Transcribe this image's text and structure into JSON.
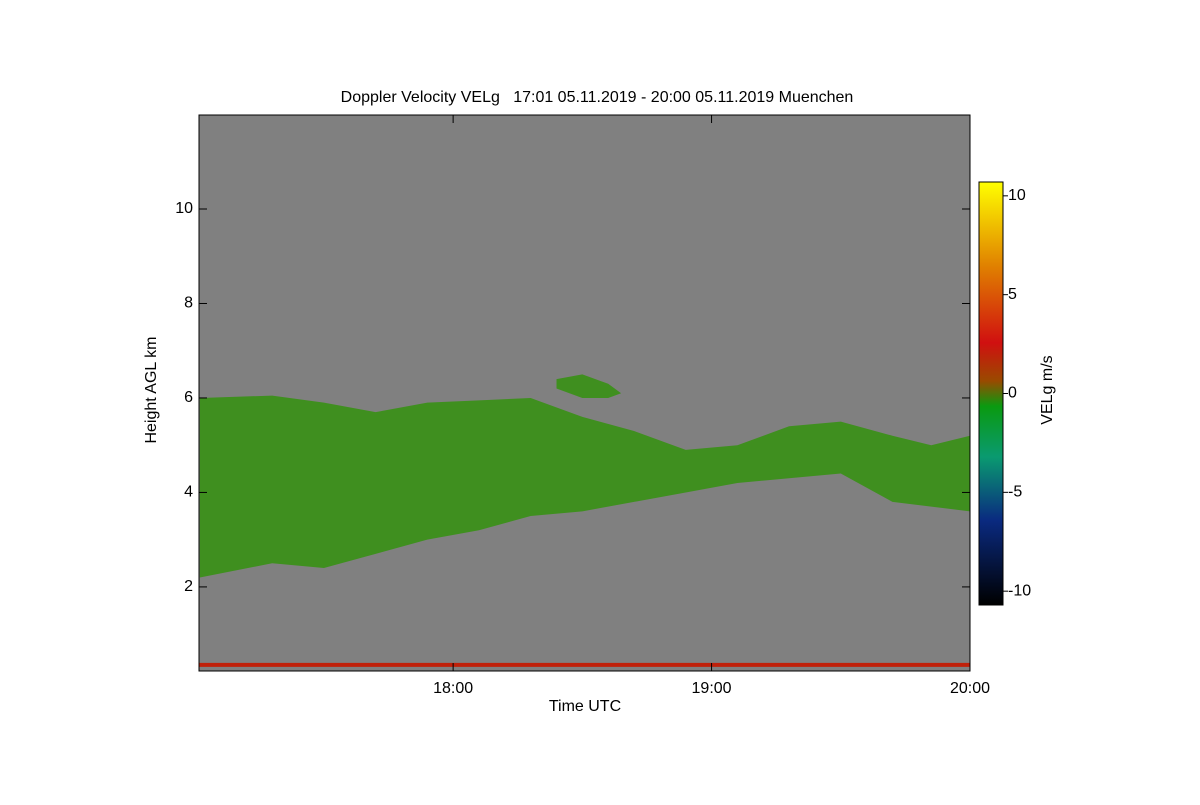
{
  "chart_data": {
    "type": "heatmap",
    "title": "Doppler Velocity VELg   17:01 05.11.2019 - 20:00 05.11.2019 Muenchen",
    "x_label": "Time UTC",
    "y_label": "Height AGL km",
    "background": "#808080",
    "cloud_color": "#3f8f1f",
    "xlim": [
      17.0167,
      20.0
    ],
    "xticks": [
      {
        "value": 18,
        "label": "18:00"
      },
      {
        "value": 19,
        "label": "19:00"
      },
      {
        "value": 20,
        "label": "20:00"
      }
    ],
    "ylim": [
      0.22,
      11.99
    ],
    "yticks": [
      2,
      4,
      6,
      8,
      10
    ],
    "regions": [
      {
        "x": [
          17.02,
          17.3,
          17.5,
          17.7,
          17.9,
          18.1,
          18.3,
          18.5,
          18.7,
          18.9,
          19.1,
          19.3,
          19.5,
          19.7,
          19.85,
          20.0
        ],
        "top": [
          6.0,
          6.05,
          5.9,
          5.7,
          5.9,
          5.95,
          6.0,
          5.6,
          5.3,
          4.9,
          5.0,
          5.4,
          5.5,
          5.2,
          5.0,
          5.2
        ],
        "base": [
          2.2,
          2.5,
          2.4,
          2.7,
          3.0,
          3.2,
          3.5,
          3.6,
          3.8,
          4.0,
          4.2,
          4.3,
          4.4,
          3.8,
          3.7,
          3.6
        ]
      },
      {
        "x": [
          18.4,
          18.5,
          18.6,
          18.65
        ],
        "top": [
          6.4,
          6.5,
          6.3,
          6.1
        ],
        "base": [
          6.2,
          6.0,
          6.0,
          6.1
        ]
      }
    ],
    "ground_layer": {
      "height": 0.35,
      "color": "#c0200a"
    },
    "colorbar": {
      "label": "VELg m/s",
      "lim": [
        -10.7,
        10.7
      ],
      "ticks": [
        -10,
        -5,
        0,
        5,
        10
      ]
    }
  }
}
